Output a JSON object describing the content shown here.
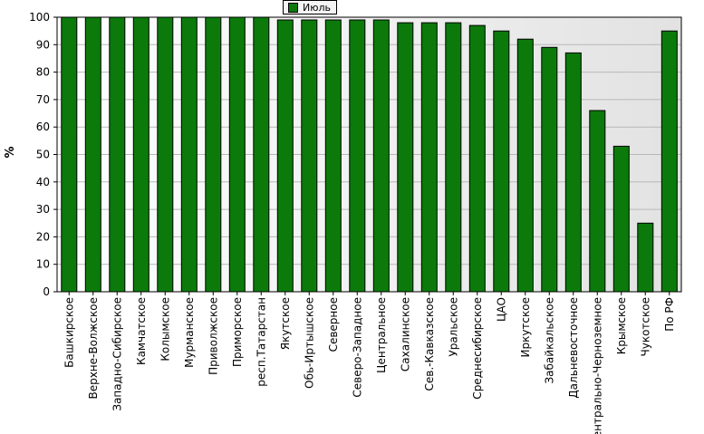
{
  "legend": {
    "label": "Июль",
    "color": "#0b7a0b"
  },
  "chart_data": {
    "type": "bar",
    "ylabel": "%",
    "ylim": [
      0,
      100
    ],
    "yticks": [
      0,
      10,
      20,
      30,
      40,
      50,
      60,
      70,
      80,
      90,
      100
    ],
    "grid": true,
    "legend_position": "top-center",
    "series": [
      {
        "name": "Июль",
        "color": "#0b7a0b",
        "values": [
          100,
          100,
          100,
          100,
          100,
          100,
          100,
          100,
          100,
          99,
          99,
          99,
          99,
          99,
          98,
          98,
          98,
          97,
          95,
          92,
          89,
          87,
          66,
          53,
          25,
          95
        ]
      }
    ],
    "categories": [
      "Башкирское",
      "Верхне-Волжское",
      "Западно-Сибирское",
      "Камчатское",
      "Колымское",
      "Мурманское",
      "Приволжское",
      "Приморское",
      "респ.Татарстан",
      "Якутское",
      "Обь-Иртышское",
      "Северное",
      "Северо-Западное",
      "Центральное",
      "Сахалинское",
      "Сев.-Кавказское",
      "Уральское",
      "Среднесибирское",
      "ЦАО",
      "Иркутское",
      "Забайкальское",
      "Дальневосточное",
      "Центрально-Черноземное",
      "Крымское",
      "Чукотское",
      "По РФ"
    ]
  }
}
